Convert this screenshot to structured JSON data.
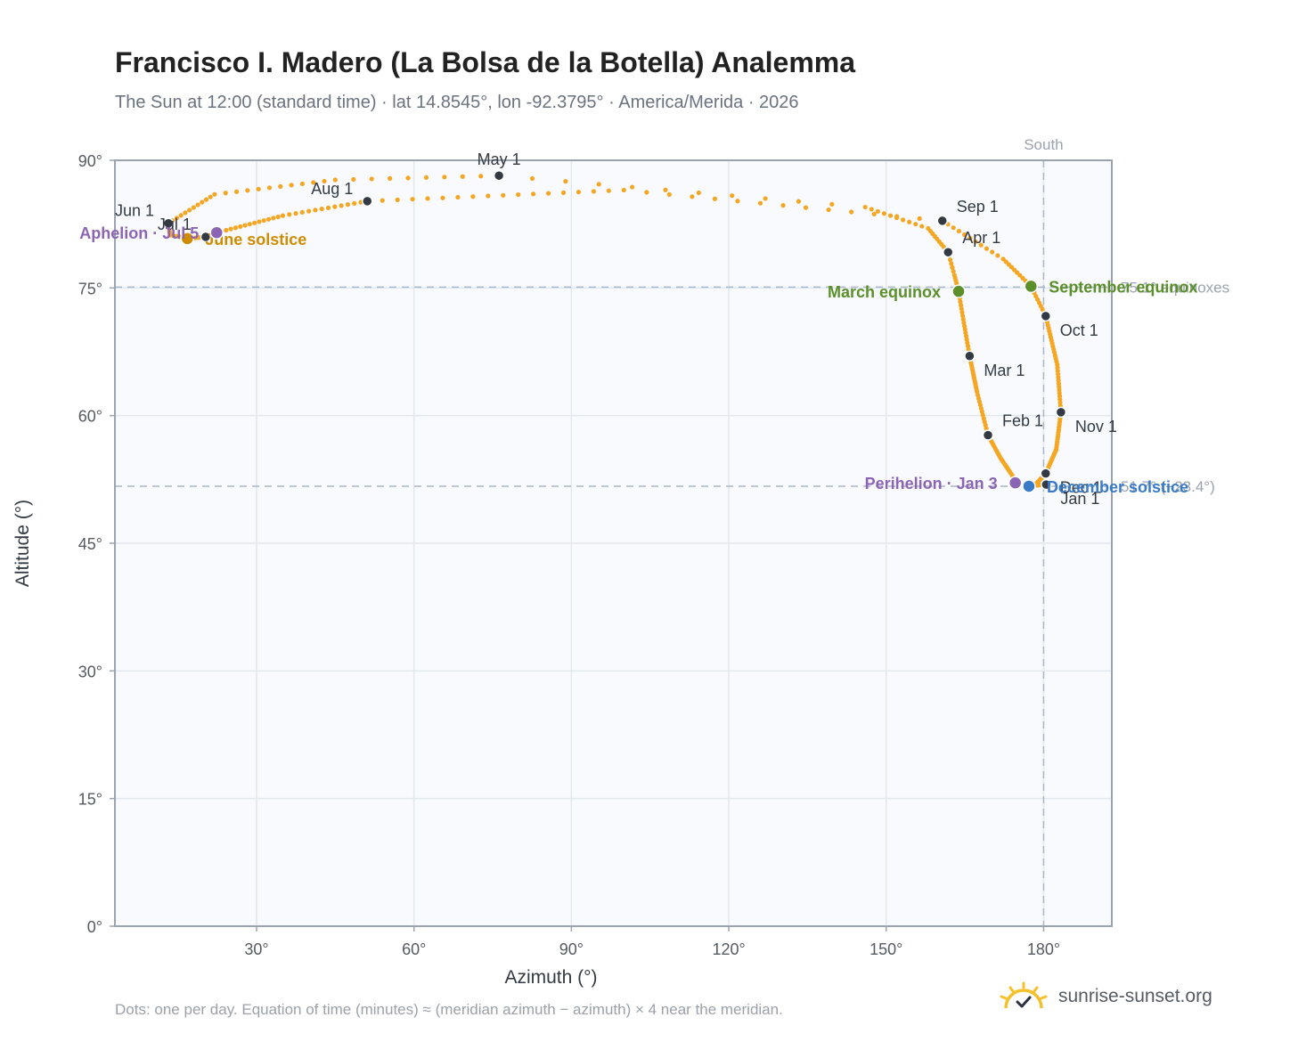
{
  "title": "Francisco I. Madero (La Bolsa de la Botella) Analemma",
  "subtitle": "The Sun at 12:00 (standard time) · lat 14.8545°, lon -92.3795° · America/Merida · 2026",
  "footnote": "Dots: one per day. Equation of time (minutes) ≈ (meridian azimuth − azimuth) × 4 near the meridian.",
  "brand": {
    "name": "sunrise-sunset.org",
    "icon": "sun-check-logo-icon"
  },
  "colors": {
    "analemma": "#f5a623",
    "month_marker": "#333a44",
    "equinox": "#5a8f29",
    "june_solstice": "#d08c00",
    "december_solstice": "#3a7bc8",
    "apsis": "#8c64b4",
    "plot_bg": "#f8fafd",
    "grid": "#e3e8ee",
    "axis": "#9aa3b0",
    "reference_line": "#a9b8c8"
  },
  "chart_data": {
    "type": "scatter",
    "title": "Francisco I. Madero (La Bolsa de la Botella) Analemma",
    "xlabel": "Azimuth (°)",
    "ylabel": "Altitude (°)",
    "xlim": [
      3,
      193
    ],
    "ylim": [
      0,
      90
    ],
    "xticks": [
      30,
      60,
      90,
      120,
      150,
      180
    ],
    "xtick_labels": [
      "30°",
      "60°",
      "90°",
      "120°",
      "150°",
      "180°"
    ],
    "yticks": [
      0,
      15,
      30,
      45,
      60,
      75,
      90
    ],
    "ytick_labels": [
      "0°",
      "15°",
      "30°",
      "45°",
      "60°",
      "75°",
      "90°"
    ],
    "grid": true,
    "series": [],
    "path_keypoints": [
      {
        "day": 1,
        "x": 180.5,
        "y": 51.9
      },
      {
        "day": 3,
        "x": 174.6,
        "y": 52.1
      },
      {
        "day": 10,
        "x": 174.0,
        "y": 53.0
      },
      {
        "day": 20,
        "x": 171.8,
        "y": 55.0
      },
      {
        "day": 32,
        "x": 169.4,
        "y": 57.7
      },
      {
        "day": 45,
        "x": 167.3,
        "y": 62.8
      },
      {
        "day": 60,
        "x": 165.9,
        "y": 67.0
      },
      {
        "day": 70,
        "x": 164.8,
        "y": 70.9
      },
      {
        "day": 79,
        "x": 163.8,
        "y": 74.6
      },
      {
        "day": 85,
        "x": 163.0,
        "y": 76.5
      },
      {
        "day": 91,
        "x": 161.8,
        "y": 79.2
      },
      {
        "day": 100,
        "x": 158.0,
        "y": 82.0
      },
      {
        "day": 110,
        "x": 146.0,
        "y": 84.5
      },
      {
        "day": 121,
        "x": 76.2,
        "y": 88.2
      },
      {
        "day": 130,
        "x": 45.0,
        "y": 87.7
      },
      {
        "day": 141,
        "x": 22.0,
        "y": 86.0
      },
      {
        "day": 152,
        "x": 13.2,
        "y": 82.6
      },
      {
        "day": 158,
        "x": 13.5,
        "y": 81.2
      },
      {
        "day": 163,
        "x": 16.5,
        "y": 80.9
      },
      {
        "day": 172,
        "x": 16.8,
        "y": 80.8
      },
      {
        "day": 182,
        "x": 20.3,
        "y": 81.0
      },
      {
        "day": 186,
        "x": 22.4,
        "y": 81.5
      },
      {
        "day": 200,
        "x": 35.0,
        "y": 83.5
      },
      {
        "day": 213,
        "x": 51.1,
        "y": 85.2
      },
      {
        "day": 230,
        "x": 100.0,
        "y": 86.5
      },
      {
        "day": 244,
        "x": 160.7,
        "y": 82.9
      },
      {
        "day": 255,
        "x": 172.3,
        "y": 78.4
      },
      {
        "day": 265,
        "x": 177.6,
        "y": 75.2
      },
      {
        "day": 274,
        "x": 180.4,
        "y": 71.7
      },
      {
        "day": 290,
        "x": 182.6,
        "y": 66.0
      },
      {
        "day": 305,
        "x": 183.3,
        "y": 60.4
      },
      {
        "day": 320,
        "x": 182.4,
        "y": 56.0
      },
      {
        "day": 335,
        "x": 180.4,
        "y": 53.2
      },
      {
        "day": 345,
        "x": 178.6,
        "y": 52.0
      },
      {
        "day": 355,
        "x": 177.2,
        "y": 51.7
      },
      {
        "day": 365,
        "x": 180.0,
        "y": 51.9
      }
    ],
    "month_markers": [
      {
        "label": "Jan 1",
        "x": 180.5,
        "y": 51.9,
        "anchor": "below-right"
      },
      {
        "label": "Feb 1",
        "x": 169.4,
        "y": 57.7,
        "anchor": "above-right"
      },
      {
        "label": "Mar 1",
        "x": 165.9,
        "y": 67.0,
        "anchor": "below-right"
      },
      {
        "label": "Apr 1",
        "x": 161.8,
        "y": 79.2,
        "anchor": "above-right"
      },
      {
        "label": "May 1",
        "x": 76.2,
        "y": 88.2,
        "anchor": "above"
      },
      {
        "label": "Jun 1",
        "x": 13.2,
        "y": 82.6,
        "anchor": "above-left"
      },
      {
        "label": "Jul 1",
        "x": 20.3,
        "y": 81.0,
        "anchor": "above-left"
      },
      {
        "label": "Aug 1",
        "x": 51.1,
        "y": 85.2,
        "anchor": "above-left"
      },
      {
        "label": "Sep 1",
        "x": 160.7,
        "y": 82.9,
        "anchor": "above-right"
      },
      {
        "label": "Oct 1",
        "x": 180.4,
        "y": 71.7,
        "anchor": "below-right"
      },
      {
        "label": "Nov 1",
        "x": 183.3,
        "y": 60.4,
        "anchor": "below-right"
      },
      {
        "label": "Dec 1",
        "x": 180.4,
        "y": 53.2,
        "anchor": "below-right"
      }
    ],
    "events": [
      {
        "label": "March equinox",
        "x": 163.8,
        "y": 74.6,
        "color_key": "equinox",
        "side": "left"
      },
      {
        "label": "September equinox",
        "x": 177.6,
        "y": 75.2,
        "color_key": "equinox",
        "side": "right"
      },
      {
        "label": "June solstice",
        "x": 16.8,
        "y": 80.8,
        "color_key": "june_solstice",
        "side": "right"
      },
      {
        "label": "December solstice",
        "x": 177.2,
        "y": 51.7,
        "color_key": "december_solstice",
        "side": "right"
      },
      {
        "label": "Aphelion · Jul 5",
        "x": 22.4,
        "y": 81.5,
        "color_key": "apsis",
        "side": "left"
      },
      {
        "label": "Perihelion · Jan 3",
        "x": 174.6,
        "y": 52.1,
        "color_key": "apsis",
        "side": "left"
      }
    ],
    "reference_lines": [
      {
        "axis": "x",
        "value": 180,
        "label": "South"
      },
      {
        "axis": "y",
        "value": 75.1,
        "label": "75.1° equinoxes"
      },
      {
        "axis": "y",
        "value": 51.7,
        "label": "51.7° (−23.4°)"
      }
    ]
  }
}
